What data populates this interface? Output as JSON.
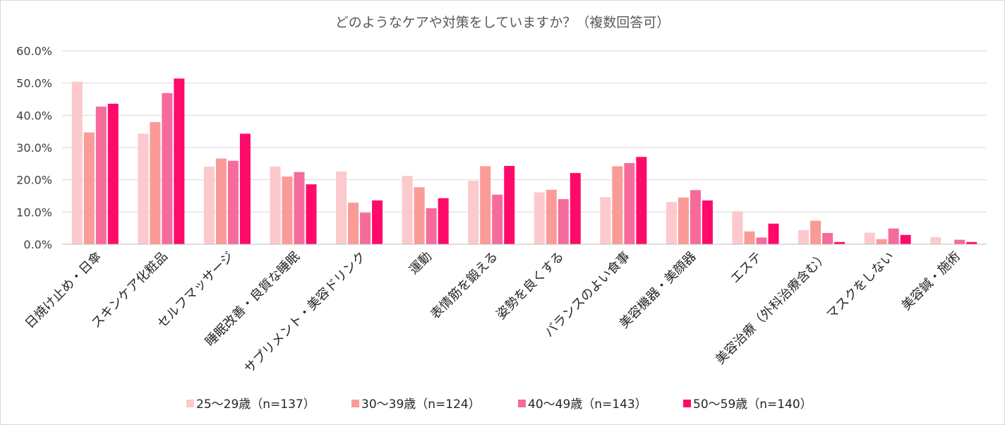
{
  "chart_data": {
    "type": "bar",
    "title": "どのようなケアや対策をしていますか？（複数回答可）",
    "xlabel": "",
    "ylabel": "",
    "ylim": [
      0,
      60
    ],
    "y_ticks": [
      "0.0%",
      "10.0%",
      "20.0%",
      "30.0%",
      "40.0%",
      "50.0%",
      "60.0%"
    ],
    "grid": true,
    "legend_position": "bottom",
    "categories": [
      "日焼け止め・日傘",
      "スキンケア化粧品",
      "セルフマッサージ",
      "睡眠改善・良質な睡眠",
      "サプリメント・美容ドリンク",
      "運動",
      "表情筋を鍛える",
      "姿勢を良くする",
      "バランスのよい食事",
      "美容機器・美顔器",
      "エステ",
      "美容治療（外科治療含む）",
      "マスクをしない",
      "美容鍼・施術"
    ],
    "series": [
      {
        "name": "25～29歳（n=137）",
        "color": "#fcc9cc",
        "values": [
          50.4,
          34.3,
          24.1,
          24.1,
          22.6,
          21.2,
          19.7,
          16.1,
          14.6,
          13.1,
          10.2,
          4.4,
          3.6,
          2.2
        ]
      },
      {
        "name": "30～39歳（n=124）",
        "color": "#fa9b97",
        "values": [
          34.7,
          37.9,
          26.6,
          21.0,
          12.9,
          17.7,
          24.2,
          16.9,
          24.2,
          14.5,
          4.0,
          7.3,
          1.6,
          0.0
        ]
      },
      {
        "name": "40～49歳（n=143）",
        "color": "#f66b9b",
        "values": [
          42.7,
          46.9,
          25.9,
          22.4,
          9.8,
          11.2,
          15.4,
          14.0,
          25.2,
          16.8,
          2.1,
          3.5,
          4.9,
          1.4
        ]
      },
      {
        "name": "50～59歳（n=140）",
        "color": "#ff0a6b",
        "values": [
          43.6,
          51.4,
          34.3,
          18.6,
          13.6,
          14.3,
          24.3,
          22.1,
          27.1,
          13.6,
          6.4,
          0.7,
          2.9,
          0.7
        ]
      }
    ]
  }
}
